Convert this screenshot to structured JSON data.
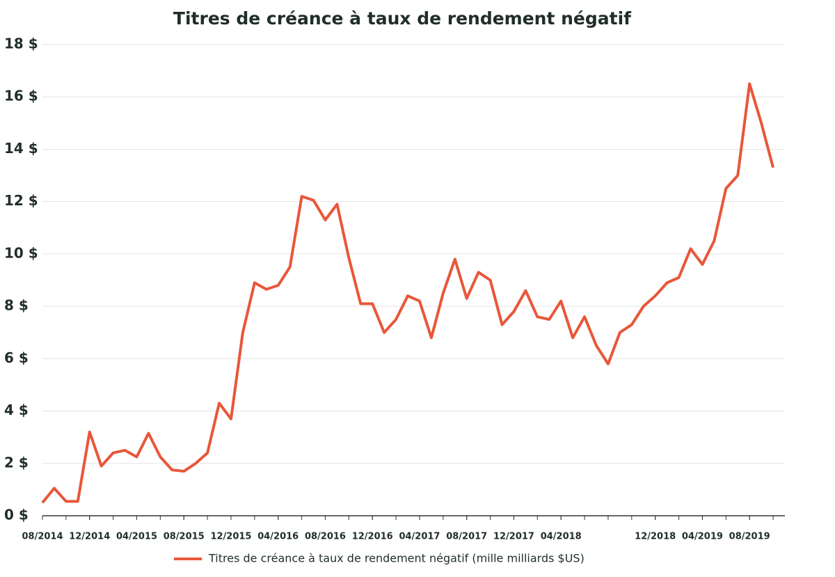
{
  "chart_data": {
    "type": "line",
    "title": "Titres de créance à taux de rendement négatif",
    "x": [
      "08/2014",
      "09/2014",
      "10/2014",
      "11/2014",
      "12/2014",
      "01/2015",
      "02/2015",
      "03/2015",
      "04/2015",
      "05/2015",
      "06/2015",
      "07/2015",
      "08/2015",
      "09/2015",
      "10/2015",
      "11/2015",
      "12/2015",
      "01/2016",
      "02/2016",
      "03/2016",
      "04/2016",
      "05/2016",
      "06/2016",
      "07/2016",
      "08/2016",
      "09/2016",
      "10/2016",
      "11/2016",
      "12/2016",
      "01/2017",
      "02/2017",
      "03/2017",
      "04/2017",
      "05/2017",
      "06/2017",
      "07/2017",
      "08/2017",
      "09/2017",
      "10/2017",
      "11/2017",
      "12/2017",
      "01/2018",
      "02/2018",
      "03/2018",
      "04/2018",
      "05/2018",
      "06/2018",
      "07/2018",
      "08/2018",
      "09/2018",
      "10/2018",
      "11/2018",
      "12/2018",
      "01/2019",
      "02/2019",
      "03/2019",
      "04/2019",
      "05/2019",
      "06/2019",
      "07/2019",
      "08/2019",
      "09/2019",
      "10/2019"
    ],
    "series": [
      {
        "name": "Titres de créance à taux de rendement négatif (mille milliards $US)",
        "color": "#e8573a",
        "values": [
          0.5,
          1.05,
          0.55,
          0.55,
          3.2,
          1.9,
          2.4,
          2.5,
          2.25,
          3.15,
          2.25,
          1.75,
          1.7,
          2.0,
          2.4,
          4.3,
          3.7,
          7.0,
          8.9,
          8.65,
          8.8,
          9.5,
          12.2,
          12.05,
          11.3,
          11.9,
          9.85,
          8.1,
          8.1,
          7.0,
          7.5,
          8.4,
          8.2,
          6.8,
          8.5,
          9.8,
          8.3,
          9.3,
          9.0,
          7.3,
          7.8,
          8.6,
          7.6,
          7.5,
          8.2,
          6.8,
          7.6,
          6.5,
          5.8,
          7.0,
          7.3,
          8.0,
          8.4,
          8.9,
          9.1,
          10.2,
          9.6,
          10.5,
          12.5,
          13.0,
          16.5,
          15.0,
          13.3
        ]
      }
    ],
    "xticks": [
      "08/2014",
      "12/2014",
      "04/2015",
      "08/2015",
      "12/2015",
      "04/2016",
      "08/2016",
      "12/2016",
      "04/2017",
      "08/2017",
      "12/2017",
      "04/2018",
      "12/2018",
      "04/2019",
      "08/2019"
    ],
    "ylim": [
      0,
      18
    ],
    "yticks": [
      {
        "value": 0,
        "label": "0 $"
      },
      {
        "value": 2,
        "label": "2 $"
      },
      {
        "value": 4,
        "label": "4 $"
      },
      {
        "value": 6,
        "label": "6 $"
      },
      {
        "value": 8,
        "label": "8 $"
      },
      {
        "value": 10,
        "label": "10 $"
      },
      {
        "value": 12,
        "label": "12 $"
      },
      {
        "value": 14,
        "label": "14 $"
      },
      {
        "value": 16,
        "label": "16 $"
      },
      {
        "value": 18,
        "label": "18 $"
      }
    ],
    "grid": true
  }
}
